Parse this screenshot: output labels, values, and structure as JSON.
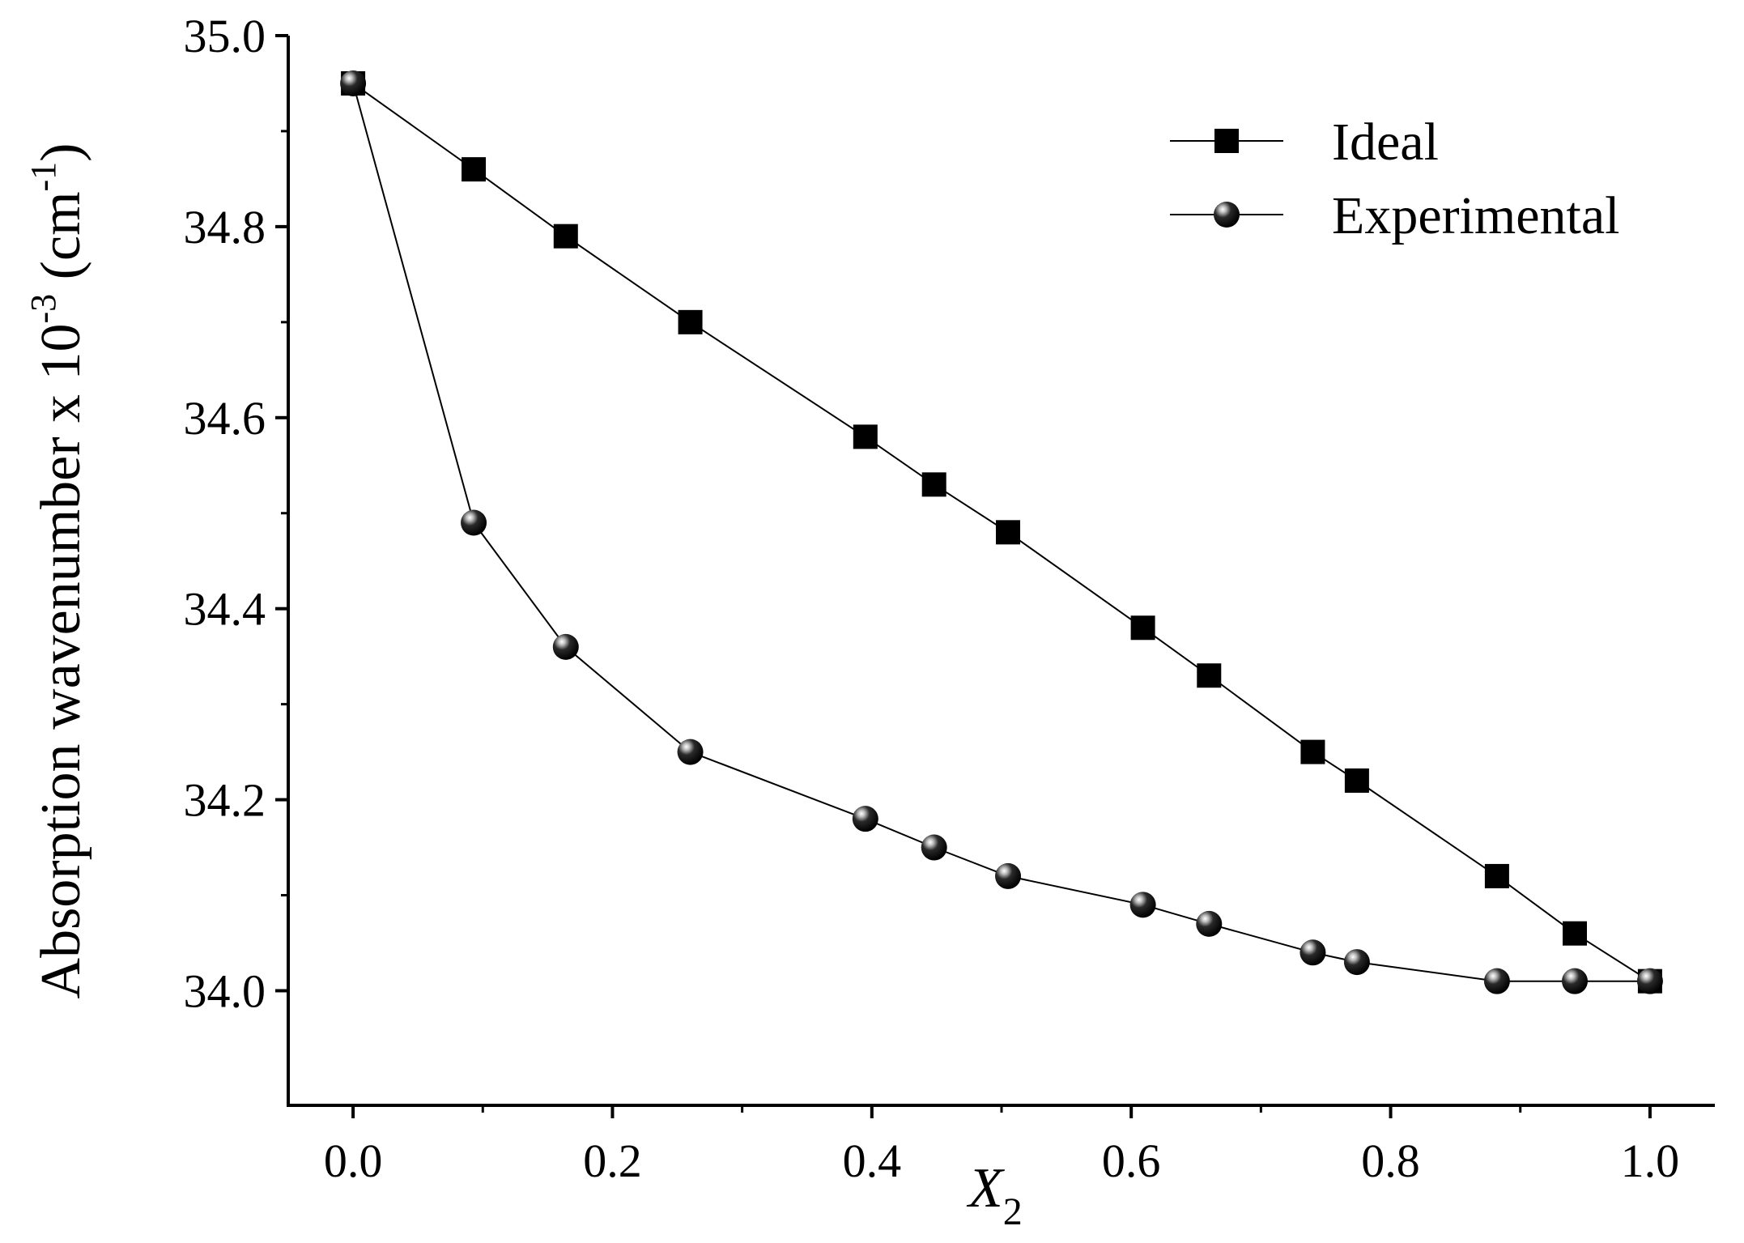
{
  "chart_data": {
    "type": "line",
    "title": "",
    "xlabel": "X",
    "xlabel_sub": "2",
    "ylabel": {
      "main": "Absorption wavenumber x 10",
      "exp": "-3",
      "unit": " (cm",
      "unit_exp": "-1",
      "close": ")"
    },
    "xlim": [
      -0.05,
      1.05
    ],
    "ylim": [
      33.88,
      35.0
    ],
    "xticks": [
      0.0,
      0.2,
      0.4,
      0.6,
      0.8,
      1.0
    ],
    "xtick_labels": [
      "0.0",
      "0.2",
      "0.4",
      "0.6",
      "0.8",
      "1.0"
    ],
    "yticks": [
      34.0,
      34.2,
      34.4,
      34.6,
      34.8,
      35.0
    ],
    "ytick_labels": [
      "34.0",
      "34.2",
      "34.4",
      "34.6",
      "34.8",
      "35.0"
    ],
    "legend_position": "top-right",
    "grid": false,
    "x": [
      0.0,
      0.093,
      0.164,
      0.26,
      0.395,
      0.448,
      0.505,
      0.609,
      0.66,
      0.74,
      0.774,
      0.882,
      0.942,
      1.0
    ],
    "series": [
      {
        "name": "Ideal",
        "marker": "square",
        "values": [
          34.95,
          34.86,
          34.79,
          34.7,
          34.58,
          34.53,
          34.48,
          34.38,
          34.33,
          34.25,
          34.22,
          34.12,
          34.06,
          34.01
        ]
      },
      {
        "name": "Experimental",
        "marker": "sphere",
        "values": [
          34.95,
          34.49,
          34.36,
          34.25,
          34.18,
          34.15,
          34.12,
          34.09,
          34.07,
          34.04,
          34.03,
          34.01,
          34.01,
          34.01
        ]
      }
    ]
  }
}
